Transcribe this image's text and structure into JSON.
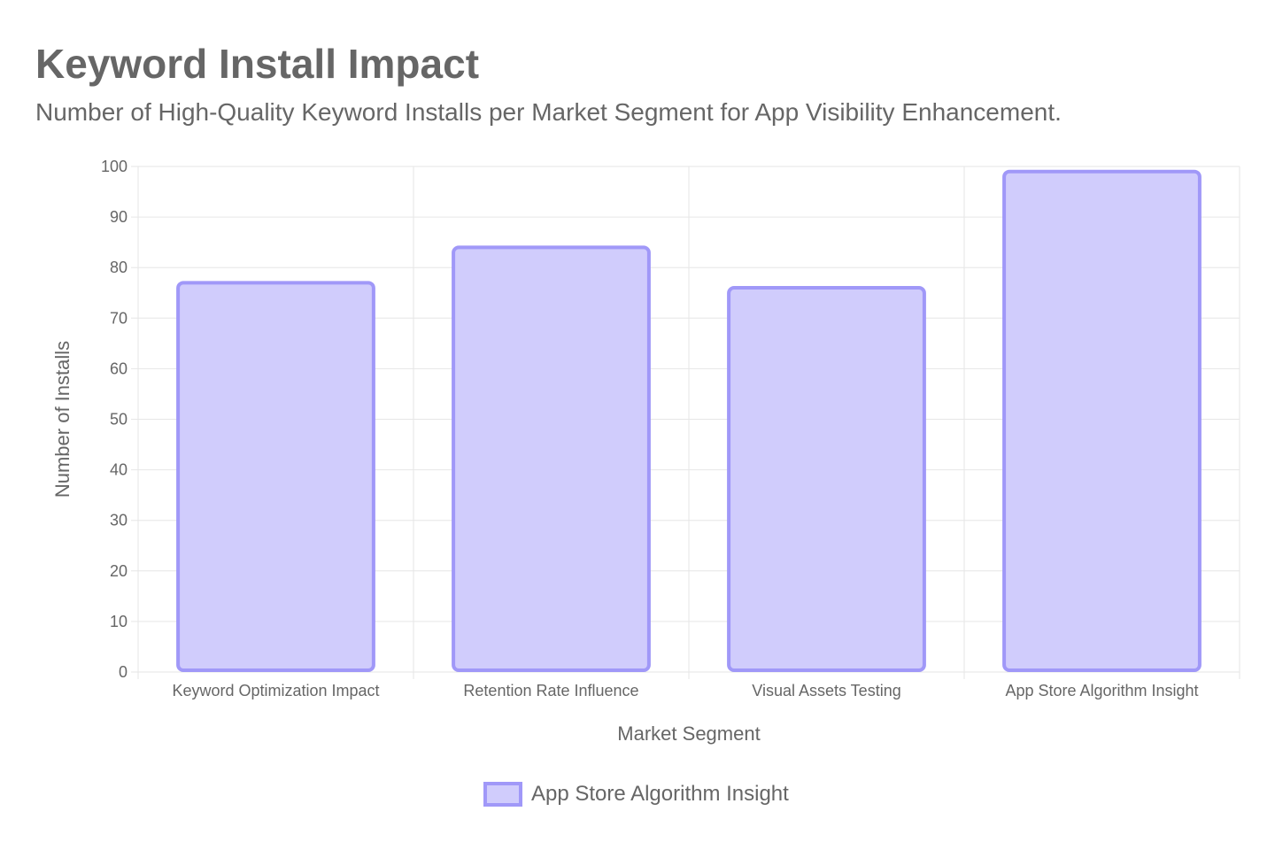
{
  "header": {
    "title": "Keyword Install Impact",
    "subtitle": "Number of High-Quality Keyword Installs per Market Segment for App Visibility Enhancement."
  },
  "colors": {
    "bar_fill": "#d0ccfc",
    "bar_border": "#a098f8",
    "grid": "#e6e6e6",
    "text": "#666666"
  },
  "chart_data": {
    "type": "bar",
    "title": "Keyword Install Impact",
    "subtitle": "Number of High-Quality Keyword Installs per Market Segment for App Visibility Enhancement.",
    "xlabel": "Market Segment",
    "ylabel": "Number of Installs",
    "categories": [
      "Keyword Optimization Impact",
      "Retention Rate Influence",
      "Visual Assets Testing",
      "App Store Algorithm Insight"
    ],
    "series": [
      {
        "name": "App Store Algorithm Insight",
        "values": [
          77,
          84,
          76,
          99
        ]
      }
    ],
    "ylim": [
      0,
      100
    ],
    "yticks": [
      0,
      10,
      20,
      30,
      40,
      50,
      60,
      70,
      80,
      90,
      100
    ],
    "grid": true,
    "legend": "bottom-center"
  }
}
